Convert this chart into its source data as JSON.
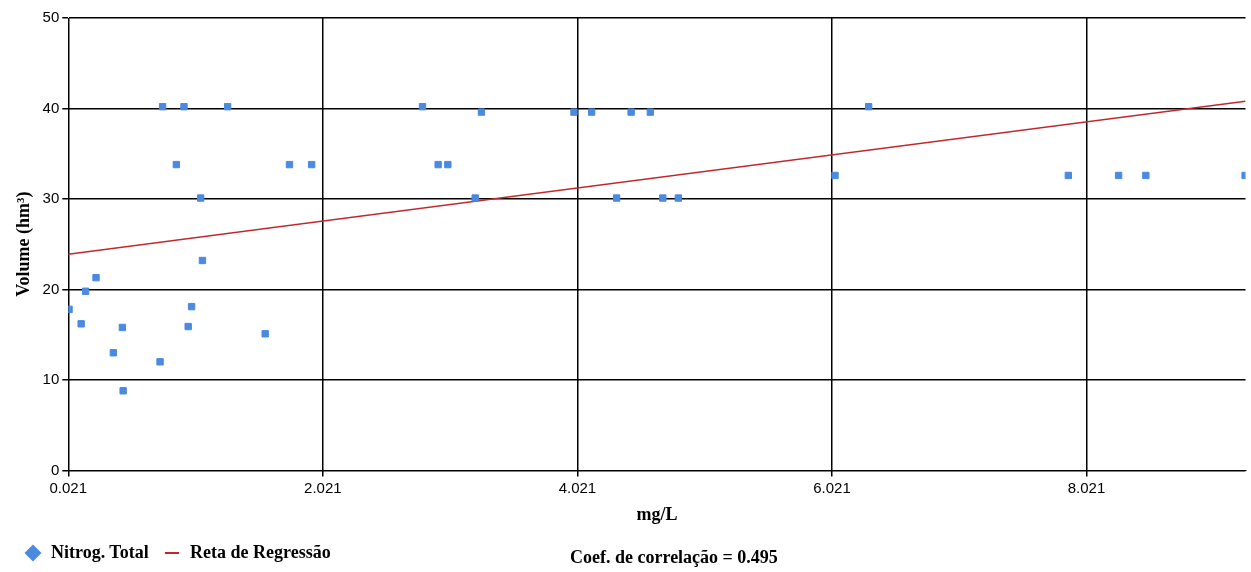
{
  "chart_data": {
    "type": "scatter",
    "xlabel": "mg/L",
    "ylabel": "Volume (hm³)",
    "xlim": [
      0.021,
      9.27
    ],
    "xticks": [
      {
        "value": 0.021,
        "label": "0.021"
      },
      {
        "value": 2.021,
        "label": "2.021"
      },
      {
        "value": 4.021,
        "label": "4.021"
      },
      {
        "value": 6.021,
        "label": "6.021"
      },
      {
        "value": 8.021,
        "label": "8.021"
      }
    ],
    "ylim": [
      0,
      50
    ],
    "yticks": [
      0,
      10,
      20,
      30,
      40,
      50
    ],
    "grid": true,
    "legend": "bottom",
    "marker": "square",
    "annotations": [
      "Coef. de correlação = 0.495"
    ],
    "series": [
      {
        "name": "Nitrog. Total",
        "color": "#4a8ae0",
        "x": [
          0.027,
          0.122,
          0.157,
          0.239,
          0.375,
          0.446,
          0.452,
          0.742,
          0.762,
          0.87,
          0.93,
          0.963,
          0.99,
          1.061,
          1.075,
          1.273,
          1.568,
          1.759,
          1.933,
          2.804,
          2.927,
          3.003,
          3.218,
          3.267,
          3.994,
          4.133,
          4.329,
          4.443,
          4.594,
          4.692,
          4.814,
          6.045,
          6.309,
          7.878,
          8.273,
          8.487,
          9.267
        ],
        "values": [
          17.8,
          16.2,
          19.8,
          21.3,
          13.0,
          15.8,
          8.8,
          12.0,
          40.2,
          33.8,
          40.2,
          15.9,
          18.1,
          30.1,
          23.2,
          40.2,
          15.1,
          33.8,
          33.8,
          40.2,
          33.8,
          33.8,
          30.1,
          39.6,
          39.6,
          39.6,
          30.1,
          39.6,
          39.6,
          30.1,
          30.1,
          32.6,
          40.2,
          32.6,
          32.6,
          32.6,
          32.6
        ]
      },
      {
        "name": "Reta de Regressão",
        "type": "line",
        "color": "#c0282e",
        "marker": "none",
        "line_style": "solid",
        "x": [
          0.021,
          9.27
        ],
        "values": [
          23.9,
          40.8
        ]
      }
    ]
  }
}
